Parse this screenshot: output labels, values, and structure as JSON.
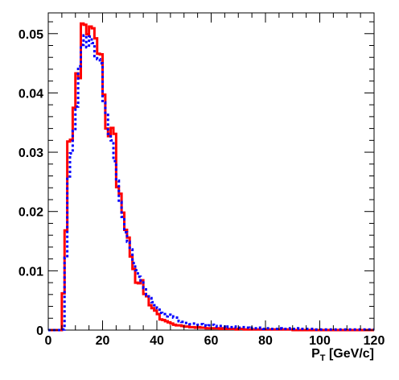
{
  "chart_data": {
    "type": "histogram",
    "xlabel_main": "P",
    "xlabel_sub": "T",
    "xlabel_unit": " [GeV/c]",
    "ylabel": "",
    "xlim": [
      0,
      120
    ],
    "ylim": [
      0,
      0.0535
    ],
    "grid": false,
    "legend": "none",
    "x_ticks": [
      0,
      20,
      40,
      60,
      80,
      100,
      120
    ],
    "x_tick_labels": [
      "0",
      "20",
      "40",
      "60",
      "80",
      "100",
      "120"
    ],
    "y_ticks": [
      0,
      0.01,
      0.02,
      0.03,
      0.04,
      0.05
    ],
    "y_tick_labels": [
      "0",
      "0.01",
      "0.02",
      "0.03",
      "0.04",
      "0.05"
    ],
    "bin_width": 1,
    "bin_start": 0,
    "series": [
      {
        "style": "solid",
        "color": "#ff0000",
        "values": [
          0,
          0,
          0,
          0,
          0,
          0.0062,
          0.0168,
          0.0318,
          0.0321,
          0.0375,
          0.0433,
          0.0425,
          0.0517,
          0.0515,
          0.0499,
          0.0512,
          0.0509,
          0.0492,
          0.0466,
          0.0465,
          0.0397,
          0.034,
          0.0327,
          0.0341,
          0.0331,
          0.0241,
          0.023,
          0.0198,
          0.0169,
          0.0156,
          0.0124,
          0.0103,
          0.008,
          0.0079,
          0.0084,
          0.0061,
          0.0057,
          0.0042,
          0.0037,
          0.0033,
          0.0027,
          0.0018,
          0.0017,
          0.0015,
          0.0013,
          0.0011,
          0.0009,
          0.0008,
          0.0008,
          0.0007,
          0.0006,
          0.0006,
          0.0005,
          0.0005,
          0.0004,
          0.0005,
          0.0004,
          0.0004,
          0.0003,
          0.0003,
          0.0003,
          0.0003,
          0.0003,
          0.0002,
          0.0003,
          0.0002,
          0.0002,
          0.0002,
          0.0002,
          0.0001,
          0.0002,
          0.0002,
          0.0001,
          0.0001,
          0.0001,
          0.0001,
          0.0001,
          0.0001,
          0.0001,
          0.0001,
          0.0001,
          0.0001,
          0.0001,
          0.0001,
          0.0001,
          0.0001,
          0.0001,
          0.0001,
          0.0001,
          0.0001,
          0,
          0,
          0,
          0,
          0,
          0,
          0,
          0,
          0,
          0,
          0,
          0,
          0,
          0,
          0,
          0,
          0,
          0,
          0,
          0,
          0,
          0,
          0,
          0,
          0,
          0,
          0,
          0,
          0,
          0
        ]
      },
      {
        "style": "dotted",
        "color": "#0000ff",
        "values": [
          0,
          0,
          0,
          0,
          0,
          0.0001,
          0.0122,
          0.0259,
          0.0298,
          0.0336,
          0.0377,
          0.0445,
          0.0481,
          0.0497,
          0.0477,
          0.0495,
          0.0484,
          0.0462,
          0.0457,
          0.045,
          0.0384,
          0.0363,
          0.0331,
          0.032,
          0.0285,
          0.0252,
          0.0216,
          0.0191,
          0.0165,
          0.0149,
          0.0136,
          0.0113,
          0.0101,
          0.009,
          0.0083,
          0.0071,
          0.0059,
          0.0054,
          0.0047,
          0.0042,
          0.0037,
          0.0029,
          0.0027,
          0.0023,
          0.0026,
          0.0023,
          0.0021,
          0.0021,
          0.0015,
          0.0014,
          0.0012,
          0.0012,
          0.001,
          0.0011,
          0.0011,
          0.0009,
          0.001,
          0.0008,
          0.0007,
          0.0008,
          0.0009,
          0.0007,
          0.0006,
          0.0007,
          0.0006,
          0.0004,
          0.0006,
          0.0005,
          0.0006,
          0.0004,
          0.0004,
          0.0005,
          0.0005,
          0.0004,
          0.0003,
          0.0004,
          0.0003,
          0.0004,
          0.0003,
          0.0002,
          0.0003,
          0.0003,
          0.0002,
          0.0002,
          0.0002,
          0.0003,
          0.0002,
          0.0002,
          0.0002,
          0.0003,
          0.0002,
          0.0002,
          0.0003,
          0.0002,
          0.0002,
          0.0002,
          0.0002,
          0.0002,
          0.0001,
          0.0001,
          0.0001,
          0.0001,
          0.0001,
          0.0001,
          0.0001,
          0.0001,
          0.0001,
          0.0001,
          0.0001,
          0.0001,
          0.0001,
          0.0001,
          0.0001,
          0.0001,
          0.0001,
          0.0001,
          0.0001,
          0.0001,
          0.0001,
          0.0001
        ]
      }
    ]
  }
}
